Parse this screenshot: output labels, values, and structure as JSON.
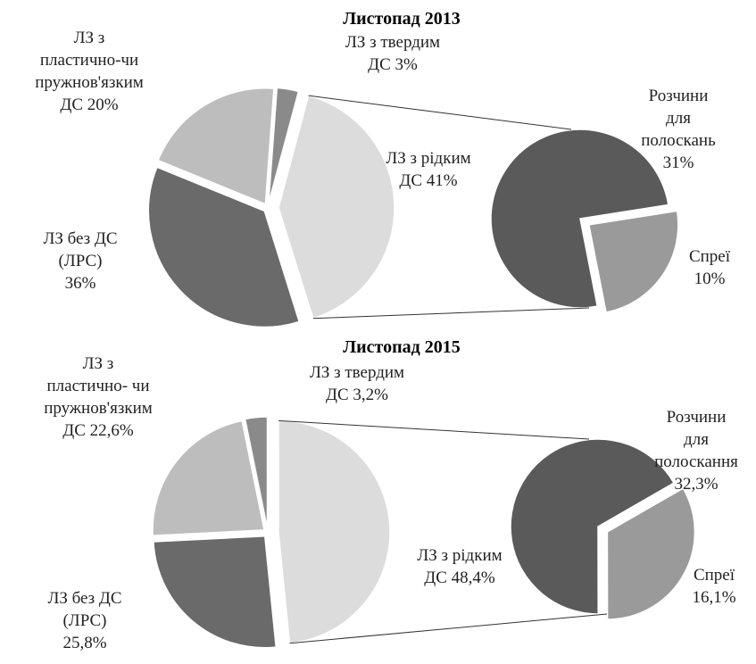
{
  "chart_data": [
    {
      "type": "pie",
      "title": "Листопад 2013",
      "categories": [
        "ЛЗ з твердим\nДС",
        "ЛЗ  з рідким\nДС",
        "ЛЗ без ДС\n(ЛРС)",
        "ЛЗ з\nпластично-чи\nпружнов'язким\nДС"
      ],
      "values": [
        3,
        41,
        36,
        20
      ],
      "value_labels": [
        "3%",
        "41%",
        "36%",
        "20%"
      ],
      "colors": [
        "#8a8a8a",
        "#dcdcdc",
        "#6a6a6a",
        "#bdbdbd"
      ],
      "secondary": {
        "categories": [
          "Розчини для\nполоскань",
          "Спреї"
        ],
        "values": [
          31,
          10
        ],
        "value_labels": [
          "31%",
          "10%"
        ],
        "colors": [
          "#5a5a5a",
          "#9a9a9a"
        ]
      }
    },
    {
      "type": "pie",
      "title": "Листопад 2015",
      "categories": [
        "ЛЗ з твердим\nДС",
        "ЛЗ з рідким\nДС",
        "ЛЗ без ДС\n(ЛРС)",
        "ЛЗ з\nпластично- чи\nпружнов'язким\nДС"
      ],
      "values": [
        3.2,
        48.4,
        25.8,
        22.6
      ],
      "value_labels": [
        "3,2%",
        "48,4%",
        "25,8%",
        "22,6%"
      ],
      "colors": [
        "#8a8a8a",
        "#dcdcdc",
        "#6a6a6a",
        "#bdbdbd"
      ],
      "secondary": {
        "categories": [
          "Розчини для\nполоскання",
          "Спреї"
        ],
        "values": [
          32.3,
          16.1
        ],
        "value_labels": [
          "32,3%",
          "16,1%"
        ],
        "colors": [
          "#5a5a5a",
          "#9a9a9a"
        ]
      }
    }
  ]
}
